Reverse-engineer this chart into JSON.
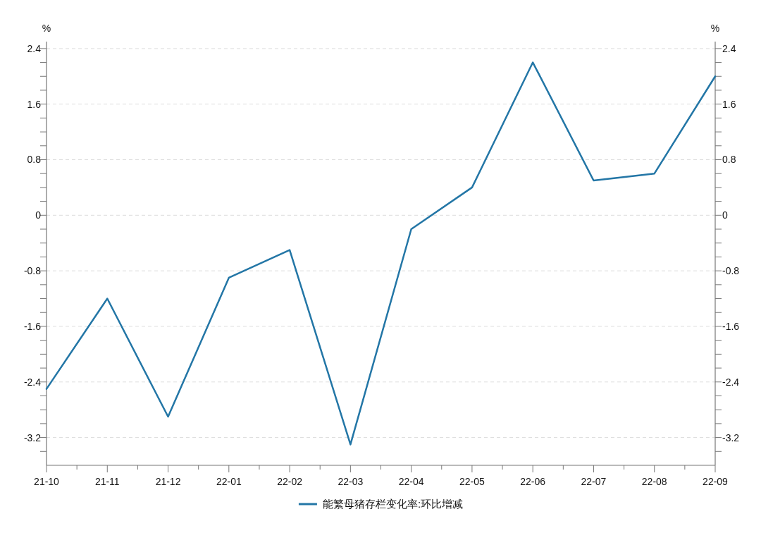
{
  "chart_data": {
    "type": "line",
    "categories": [
      "21-10",
      "21-11",
      "21-12",
      "22-01",
      "22-02",
      "22-03",
      "22-04",
      "22-05",
      "22-06",
      "22-07",
      "22-08",
      "22-09"
    ],
    "series": [
      {
        "name": "能繁母猪存栏变化率:环比增减",
        "color": "#2376a6",
        "values": [
          -2.5,
          -1.2,
          -2.9,
          -0.9,
          -0.5,
          -3.3,
          -0.2,
          0.4,
          2.2,
          0.5,
          0.6,
          2.0
        ]
      }
    ],
    "ylabel": "%",
    "y2label": "%",
    "ylim": [
      -3.6,
      2.5
    ],
    "yticks": [
      {
        "value": -3.4,
        "label": null
      },
      -3.2,
      {
        "value": -3.0,
        "label": null
      },
      {
        "value": -2.8,
        "label": null
      },
      {
        "value": -2.6,
        "label": null
      },
      -2.4,
      {
        "value": -2.2,
        "label": null
      },
      {
        "value": -2.0,
        "label": null
      },
      {
        "value": -1.8,
        "label": null
      },
      -1.6,
      {
        "value": -1.4,
        "label": null
      },
      {
        "value": -1.2,
        "label": null
      },
      {
        "value": -1.0,
        "label": null
      },
      -0.8,
      {
        "value": -0.6,
        "label": null
      },
      {
        "value": -0.4,
        "label": null
      },
      {
        "value": -0.2,
        "label": null
      },
      0,
      {
        "value": 0.2,
        "label": null
      },
      {
        "value": 0.4,
        "label": null
      },
      {
        "value": 0.6,
        "label": null
      },
      0.8,
      {
        "value": 1.0,
        "label": null
      },
      {
        "value": 1.2,
        "label": null
      },
      {
        "value": 1.4,
        "label": null
      },
      1.6,
      {
        "value": 1.8,
        "label": null
      },
      {
        "value": 2.0,
        "label": null
      },
      {
        "value": 2.2,
        "label": null
      },
      2.4
    ],
    "y2lim": [
      -3.6,
      2.5
    ],
    "y2ticks": [
      {
        "value": -3.4,
        "label": null
      },
      -3.2,
      {
        "value": -3.0,
        "label": null
      },
      {
        "value": -2.8,
        "label": null
      },
      {
        "value": -2.6,
        "label": null
      },
      -2.4,
      {
        "value": -2.2,
        "label": null
      },
      {
        "value": -2.0,
        "label": null
      },
      {
        "value": -1.8,
        "label": null
      },
      -1.6,
      {
        "value": -1.4,
        "label": null
      },
      {
        "value": -1.2,
        "label": null
      },
      {
        "value": -1.0,
        "label": null
      },
      -0.8,
      {
        "value": -0.6,
        "label": null
      },
      {
        "value": -0.4,
        "label": null
      },
      {
        "value": -0.2,
        "label": null
      },
      0,
      {
        "value": 0.2,
        "label": null
      },
      {
        "value": 0.4,
        "label": null
      },
      {
        "value": 0.6,
        "label": null
      },
      0.8,
      {
        "value": 1.0,
        "label": null
      },
      {
        "value": 1.2,
        "label": null
      },
      {
        "value": 1.4,
        "label": null
      },
      1.6,
      {
        "value": 1.8,
        "label": null
      },
      {
        "value": 2.0,
        "label": null
      },
      {
        "value": 2.2,
        "label": null
      },
      2.4
    ],
    "grid": "y",
    "legend": "bottom",
    "marker": "none",
    "line_style": "solid"
  }
}
